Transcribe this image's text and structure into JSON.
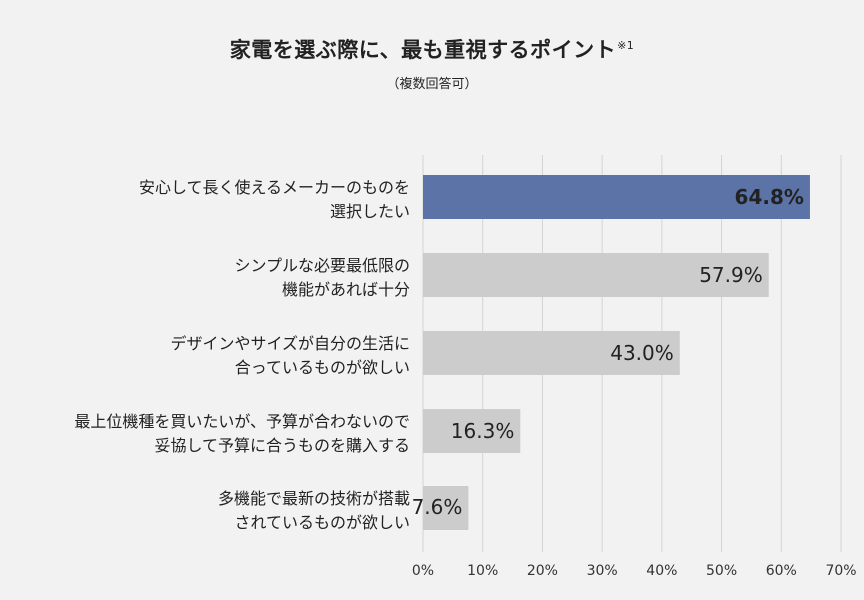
{
  "chart_data": {
    "type": "bar",
    "orientation": "horizontal",
    "title": "家電を選ぶ際に、最も重視するポイント",
    "title_note": "※1",
    "subtitle": "（複数回答可）",
    "categories": [
      [
        "安心して長く使えるメーカーのものを",
        "選択したい"
      ],
      [
        "シンプルな必要最低限の",
        "機能があれば十分"
      ],
      [
        "デザインやサイズが自分の生活に",
        "合っているものが欲しい"
      ],
      [
        "最上位機種を買いたいが、予算が合わないので",
        "妥協して予算に合うものを購入する"
      ],
      [
        "多機能で最新の技術が搭載",
        "されているものが欲しい"
      ]
    ],
    "values": [
      64.8,
      57.9,
      43.0,
      16.3,
      7.6
    ],
    "value_labels": [
      "64.8%",
      "57.9%",
      "43.0%",
      "16.3%",
      "7.6%"
    ],
    "xlim": [
      0,
      70
    ],
    "x_ticks": [
      "0%",
      "10%",
      "20%",
      "30%",
      "40%",
      "50%",
      "60%",
      "70%"
    ],
    "grid": "vertical",
    "colors": {
      "highlight": "#5b73a6",
      "default": "#cccccc",
      "grid": "#d4d4d4",
      "highlight_label": "#ffffff"
    }
  }
}
